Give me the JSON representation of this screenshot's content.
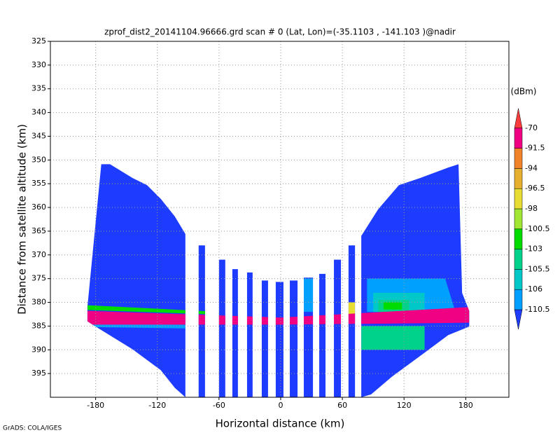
{
  "chart_data": {
    "type": "field",
    "title": "zprof_dist2_20141104.96666.grd  scan # 0  (Lat, Lon)=(-35.1103 , -141.103 )@nadir",
    "x_label": "Horizontal distance (km)",
    "y_label": "Distance from satellite altitude (km)",
    "footer": "GrADS: COLA/IGES",
    "xlim": [
      -224,
      222
    ],
    "ylim": [
      325,
      400
    ],
    "y_inverted": true,
    "xticks": [
      -180,
      -120,
      -60,
      0,
      60,
      120,
      180
    ],
    "yticks": [
      325,
      330,
      335,
      340,
      345,
      350,
      355,
      360,
      365,
      370,
      375,
      380,
      385,
      390,
      395
    ],
    "grid": true,
    "colorbar": {
      "unit": "(dBm)",
      "levels": [
        -110.5,
        -106,
        -105.5,
        -103,
        -100.5,
        -98,
        -96.5,
        -94,
        -91.5,
        -70
      ],
      "colors": [
        "#1e3cff",
        "#00a0ff",
        "#00c8c8",
        "#00d28c",
        "#00dc00",
        "#a0e632",
        "#e6dc32",
        "#e6af2d",
        "#f08228",
        "#f00082",
        "#fa3c3c"
      ]
    },
    "regions": [
      {
        "value": -112,
        "x": [
          -188,
          -174.5,
          -166,
          -144,
          -130,
          -116.6,
          -103,
          -92.7,
          -92.7,
          -103,
          -116.6,
          -144,
          -183,
          -188
        ],
        "y": [
          381,
          350.9,
          350.9,
          353.8,
          355.3,
          358.2,
          361.9,
          365.6,
          400,
          398,
          394.3,
          389.9,
          384.7,
          384
        ]
      },
      {
        "value": -112,
        "x": [
          -79.8,
          -73.6,
          -73.6,
          -79.8
        ],
        "y": [
          368,
          368,
          400,
          400
        ]
      },
      {
        "value": -112,
        "x": [
          -60,
          -53.9,
          -53.9,
          -60
        ],
        "y": [
          371,
          371,
          400,
          400
        ]
      },
      {
        "value": -112,
        "x": [
          -47,
          -41.6,
          -41.6,
          -47
        ],
        "y": [
          373,
          373,
          400,
          400
        ]
      },
      {
        "value": -112,
        "x": [
          -32.7,
          -27.3,
          -27.3,
          -32.7
        ],
        "y": [
          373.7,
          373.7,
          400,
          400
        ]
      },
      {
        "value": -112,
        "x": [
          -18.4,
          -12.3,
          -12.3,
          -18.4
        ],
        "y": [
          375.4,
          375.4,
          400,
          400
        ]
      },
      {
        "value": -112,
        "x": [
          -4.8,
          2.7,
          2.7,
          -4.8
        ],
        "y": [
          375.7,
          375.7,
          400,
          400
        ]
      },
      {
        "value": -112,
        "x": [
          8.9,
          16.4,
          16.4,
          8.9
        ],
        "y": [
          375.4,
          375.4,
          400,
          400
        ]
      },
      {
        "value": -112,
        "x": [
          22.5,
          31.4,
          31.4,
          22.5
        ],
        "y": [
          374.8,
          374.8,
          400,
          400
        ]
      },
      {
        "value": -112,
        "x": [
          37.5,
          43.6,
          43.6,
          37.5
        ],
        "y": [
          374,
          374,
          400,
          400
        ]
      },
      {
        "value": -112,
        "x": [
          51.8,
          58.6,
          58.6,
          51.8
        ],
        "y": [
          371,
          371,
          400,
          400
        ]
      },
      {
        "value": -112,
        "x": [
          66,
          72.3,
          72.3,
          66
        ],
        "y": [
          368,
          368,
          400,
          400
        ]
      },
      {
        "value": -112,
        "x": [
          78.4,
          94.8,
          115,
          135.6,
          163,
          173,
          176.5,
          183.4,
          183.4,
          163,
          135.6,
          108,
          88,
          78.4
        ],
        "y": [
          366,
          360.4,
          355.3,
          353.8,
          351.6,
          350.9,
          378,
          381.8,
          385.1,
          386.9,
          391.3,
          395.7,
          399.4,
          400
        ]
      }
    ],
    "patches": [
      {
        "value": -108,
        "x": [
          22.5,
          31.4,
          31.4,
          22.5
        ],
        "y": [
          375,
          375,
          382,
          382
        ]
      },
      {
        "value": -108,
        "x": [
          84,
          160,
          170,
          84
        ],
        "y": [
          375,
          375,
          382,
          382
        ]
      },
      {
        "value": -105.8,
        "x": [
          90,
          140,
          140,
          90
        ],
        "y": [
          378,
          378,
          382,
          382
        ]
      },
      {
        "value": -104,
        "x": [
          95,
          125,
          125,
          95
        ],
        "y": [
          379.5,
          379.5,
          382,
          382
        ]
      },
      {
        "value": -101,
        "x": [
          -188,
          -60,
          -60,
          -188
        ],
        "y": [
          380.6,
          382,
          382.6,
          381.6
        ]
      },
      {
        "value": -101,
        "x": [
          100,
          118,
          118,
          100
        ],
        "y": [
          380,
          380,
          381.5,
          381.5
        ]
      },
      {
        "value": -97,
        "x": [
          66,
          72.3,
          72.3,
          66
        ],
        "y": [
          380,
          380,
          382.5,
          382.5
        ]
      },
      {
        "value": -104,
        "x": [
          78.4,
          140,
          140,
          78.4
        ],
        "y": [
          385,
          385,
          390,
          390
        ]
      },
      {
        "value": -108,
        "x": [
          -188,
          -90,
          -90,
          -188
        ],
        "y": [
          384.5,
          384.7,
          385.5,
          385.2
        ]
      }
    ],
    "band": {
      "value": -80,
      "x": [
        -188,
        0,
        183.4,
        183.4,
        0,
        -188
      ],
      "y": [
        381.8,
        383.2,
        381,
        384.3,
        384.7,
        384.7
      ]
    }
  }
}
